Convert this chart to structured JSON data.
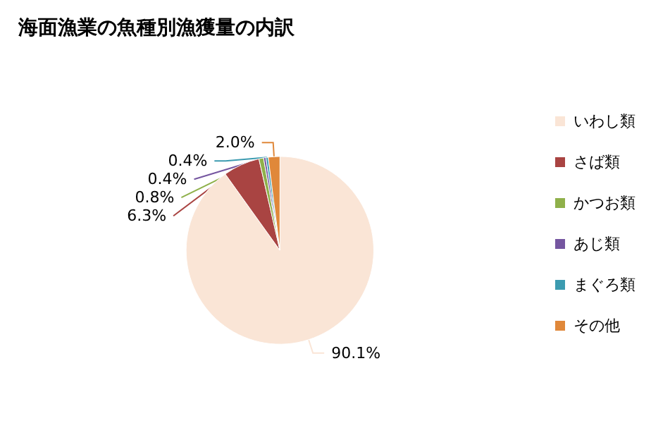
{
  "chart_data": {
    "type": "pie",
    "title": "海面漁業の魚種別漁獲量の内訳",
    "categories": [
      "いわし類",
      "さば類",
      "かつお類",
      "あじ類",
      "まぐろ類",
      "その他"
    ],
    "values": [
      90.1,
      6.3,
      0.8,
      0.4,
      0.4,
      2.0
    ],
    "colors": [
      "#fae5d6",
      "#a94442",
      "#8fb04a",
      "#7556a0",
      "#3c9bb0",
      "#e0883a"
    ],
    "value_labels": [
      "90.1%",
      "6.3%",
      "0.8%",
      "0.4%",
      "0.4%",
      "2.0%"
    ],
    "legend": "right"
  }
}
